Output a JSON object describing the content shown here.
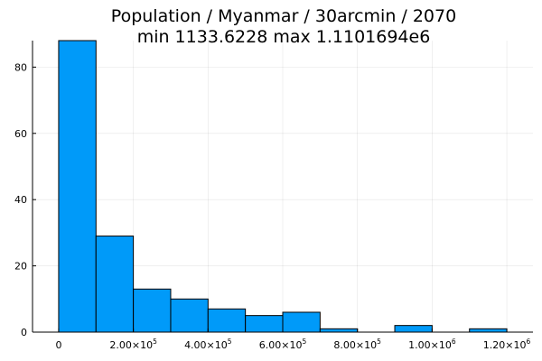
{
  "chart_data": {
    "type": "bar",
    "subtype": "histogram",
    "title": "Population / Myanmar / 30arcmin / 2070",
    "subtitle": "min 1133.6228  max 1.1101694e6",
    "xlabel": "",
    "ylabel": "",
    "bin_width": 100000,
    "bins": [
      {
        "x0": 0,
        "x1": 100000,
        "count": 88
      },
      {
        "x0": 100000,
        "x1": 200000,
        "count": 29
      },
      {
        "x0": 200000,
        "x1": 300000,
        "count": 13
      },
      {
        "x0": 300000,
        "x1": 400000,
        "count": 10
      },
      {
        "x0": 400000,
        "x1": 500000,
        "count": 7
      },
      {
        "x0": 500000,
        "x1": 600000,
        "count": 5
      },
      {
        "x0": 600000,
        "x1": 700000,
        "count": 6
      },
      {
        "x0": 700000,
        "x1": 800000,
        "count": 1
      },
      {
        "x0": 800000,
        "x1": 900000,
        "count": 0
      },
      {
        "x0": 900000,
        "x1": 1000000,
        "count": 2
      },
      {
        "x0": 1000000,
        "x1": 1100000,
        "count": 0
      },
      {
        "x0": 1100000,
        "x1": 1200000,
        "count": 1
      }
    ],
    "xlim": [
      -70000,
      1270000
    ],
    "ylim": [
      0,
      88
    ],
    "x_ticks": [
      {
        "value": 0,
        "mantissa": "0",
        "exponent": ""
      },
      {
        "value": 200000,
        "mantissa": "2.00×10",
        "exponent": "5"
      },
      {
        "value": 400000,
        "mantissa": "4.00×10",
        "exponent": "5"
      },
      {
        "value": 600000,
        "mantissa": "6.00×10",
        "exponent": "5"
      },
      {
        "value": 800000,
        "mantissa": "8.00×10",
        "exponent": "5"
      },
      {
        "value": 1000000,
        "mantissa": "1.00×10",
        "exponent": "6"
      },
      {
        "value": 1200000,
        "mantissa": "1.20×10",
        "exponent": "6"
      }
    ],
    "y_ticks": [
      0,
      20,
      40,
      60,
      80
    ],
    "grid": true,
    "legend": "none",
    "bar_color": "#009AF9",
    "edge_color": "#000000"
  }
}
